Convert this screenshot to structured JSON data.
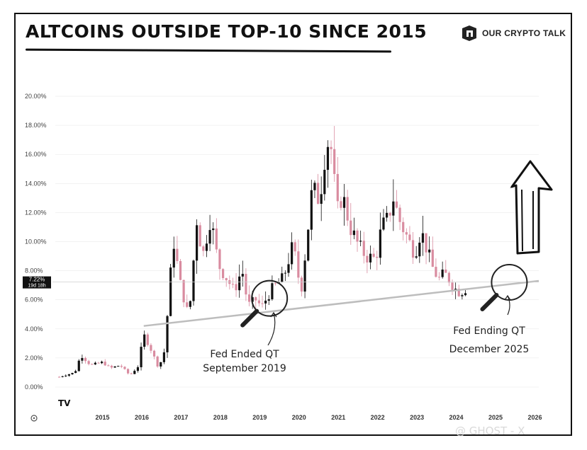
{
  "header": {
    "title": "ALTCOINS OUTSIDE TOP-10 SINCE 2015",
    "brand": "OUR CRYPTO TALK"
  },
  "watermark": "@ GHOST - X",
  "colors": {
    "up": "#111111",
    "down": "#d98ca0",
    "trendline": "#bdbdbd",
    "grid": "#e6e6e6"
  },
  "chart_data": {
    "type": "candlestick",
    "ylim": [
      0,
      20
    ],
    "y_ticks": [
      0,
      2,
      4,
      6,
      8,
      10,
      12,
      14,
      16,
      18,
      20
    ],
    "y_tick_labels": [
      "0.00%",
      "2.00%",
      "4.00%",
      "6.00%",
      "8.00%",
      "10.00%",
      "12.00%",
      "14.00%",
      "16.00%",
      "18.00%",
      "20.00%"
    ],
    "x_ticks": [
      "2015",
      "2016",
      "2017",
      "2018",
      "2019",
      "2020",
      "2021",
      "2022",
      "2023",
      "2024",
      "2025",
      "2026"
    ],
    "x_range": [
      2014.3,
      2026.6
    ],
    "current_value": 7.22,
    "price_label": "7.22%",
    "countdown_label": "19d 18h",
    "tradingview_mark": "TV",
    "anchors": [
      [
        2014.4,
        0.7
      ],
      [
        2014.8,
        1.0
      ],
      [
        2014.95,
        2.2
      ],
      [
        2015.2,
        1.5
      ],
      [
        2015.5,
        1.7
      ],
      [
        2015.7,
        1.3
      ],
      [
        2015.95,
        1.5
      ],
      [
        2016.2,
        0.8
      ],
      [
        2016.4,
        1.4
      ],
      [
        2016.55,
        3.6
      ],
      [
        2016.7,
        2.8
      ],
      [
        2016.9,
        1.5
      ],
      [
        2017.05,
        1.9
      ],
      [
        2017.15,
        4.9
      ],
      [
        2017.3,
        10.2
      ],
      [
        2017.5,
        6.8
      ],
      [
        2017.7,
        4.8
      ],
      [
        2017.9,
        11.5
      ],
      [
        2018.05,
        9.0
      ],
      [
        2018.25,
        11.7
      ],
      [
        2018.45,
        8.4
      ],
      [
        2018.7,
        7.3
      ],
      [
        2018.85,
        6.6
      ],
      [
        2019.05,
        8.1
      ],
      [
        2019.2,
        5.6
      ],
      [
        2019.4,
        6.0
      ],
      [
        2019.55,
        5.5
      ],
      [
        2019.8,
        6.7
      ],
      [
        2020.1,
        7.5
      ],
      [
        2020.35,
        9.8
      ],
      [
        2020.55,
        6.5
      ],
      [
        2020.7,
        10.2
      ],
      [
        2020.85,
        14.0
      ],
      [
        2020.95,
        12.8
      ],
      [
        2021.05,
        13.5
      ],
      [
        2021.2,
        17.0
      ],
      [
        2021.35,
        16.2
      ],
      [
        2021.45,
        11.8
      ],
      [
        2021.6,
        13.3
      ],
      [
        2021.8,
        11.0
      ],
      [
        2022.0,
        9.8
      ],
      [
        2022.2,
        9.0
      ],
      [
        2022.45,
        8.8
      ],
      [
        2022.6,
        11.0
      ],
      [
        2022.75,
        11.5
      ],
      [
        2022.9,
        13.0
      ],
      [
        2023.05,
        11.5
      ],
      [
        2023.3,
        10.0
      ],
      [
        2023.45,
        9.2
      ],
      [
        2023.6,
        10.8
      ],
      [
        2023.75,
        9.5
      ],
      [
        2023.9,
        8.2
      ],
      [
        2024.05,
        7.4
      ],
      [
        2024.2,
        7.8
      ],
      [
        2024.35,
        7.3
      ],
      [
        2024.45,
        6.8
      ],
      [
        2024.6,
        6.5
      ],
      [
        2024.8,
        6.9
      ]
    ],
    "trendline": [
      [
        2016.55,
        4.2
      ],
      [
        2026.6,
        7.3
      ]
    ],
    "annotations": [
      {
        "id": "fed-ended",
        "line1": "Fed Ended QT",
        "line2": "September 2019",
        "x": 2019.75,
        "y": 6.1
      },
      {
        "id": "fed-ending",
        "line1": "Fed Ending QT",
        "line2": "December 2025",
        "x": 2025.85,
        "y": 7.2
      }
    ]
  }
}
